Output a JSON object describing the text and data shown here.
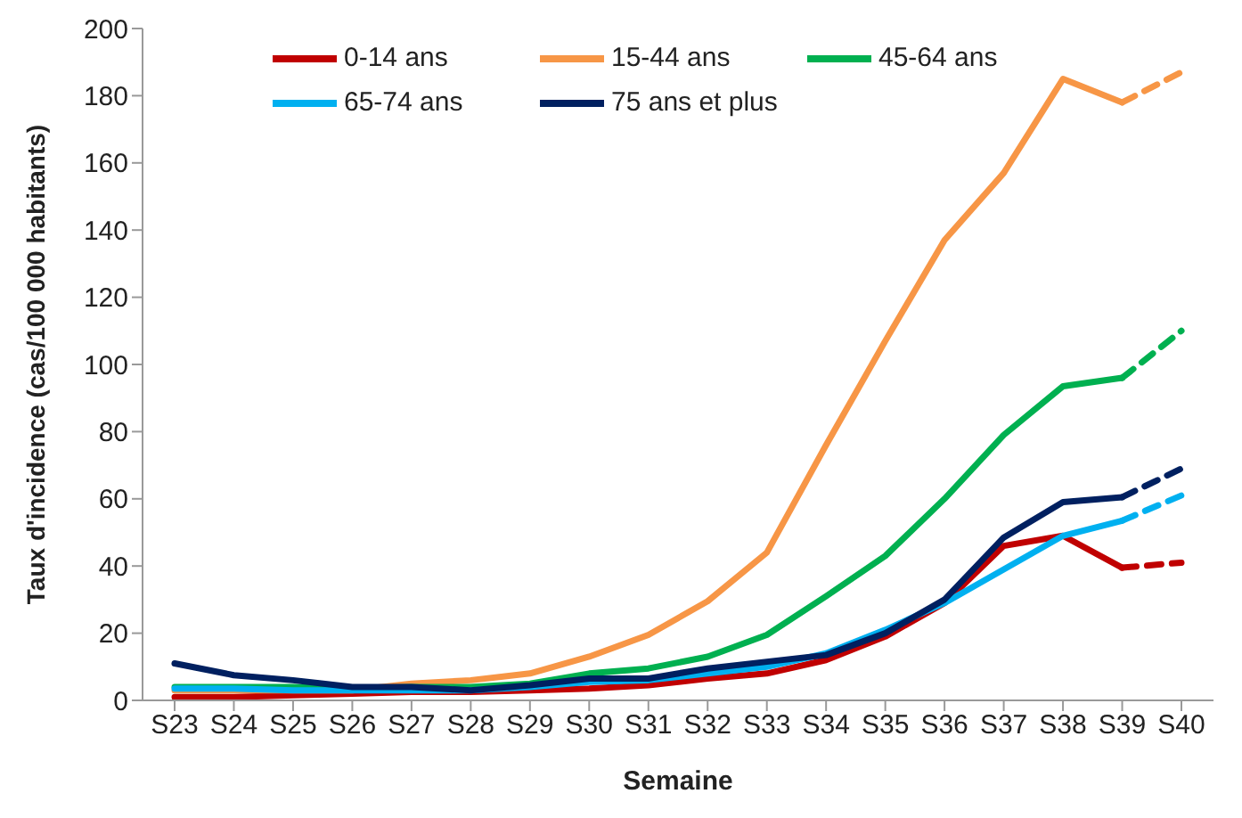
{
  "chart_data": {
    "type": "line",
    "xlabel": "Semaine",
    "ylabel": "Taux d'incidence (cas/100 000 habitants)",
    "categories": [
      "S23",
      "S24",
      "S25",
      "S26",
      "S27",
      "S28",
      "S29",
      "S30",
      "S31",
      "S32",
      "S33",
      "S34",
      "S35",
      "S36",
      "S37",
      "S38",
      "S39",
      "S40"
    ],
    "ylim": [
      0,
      200
    ],
    "yticks": [
      0,
      20,
      40,
      60,
      80,
      100,
      120,
      140,
      160,
      180,
      200
    ],
    "grid": false,
    "legend": "top",
    "marker": "none",
    "line_style": "solid",
    "series": [
      {
        "name": "0-14 ans",
        "color": "#c00000",
        "values": [
          1,
          1,
          1.5,
          2,
          2.5,
          2.5,
          3,
          3.5,
          4.5,
          6.5,
          8,
          12,
          19,
          29,
          46,
          49,
          39.5,
          null
        ]
      },
      {
        "name": "15-44 ans",
        "color": "#f79646",
        "values": [
          3,
          3,
          3,
          3,
          5,
          6,
          8,
          13,
          19.5,
          29.5,
          44,
          76,
          107,
          137,
          157,
          185,
          178,
          null
        ]
      },
      {
        "name": "45-64 ans",
        "color": "#00b050",
        "values": [
          4,
          4,
          4,
          3.5,
          4,
          4,
          5,
          8,
          9.5,
          13,
          19.5,
          31,
          43,
          60,
          79,
          93.5,
          96,
          null
        ]
      },
      {
        "name": "65-74 ans",
        "color": "#00b0f0",
        "values": [
          3.5,
          3.5,
          3,
          3,
          3,
          3,
          4,
          5.5,
          6,
          8,
          10,
          14,
          21,
          29,
          39,
          49,
          53.5,
          null
        ]
      },
      {
        "name": "75 ans et plus",
        "color": "#002060",
        "values": [
          11,
          7.5,
          6,
          4,
          4,
          3,
          4.5,
          6.5,
          6.5,
          9.5,
          11.5,
          13.5,
          20,
          30,
          48.5,
          59,
          60.5,
          null
        ]
      },
      {
        "color": "#c00000",
        "line_style": "dashed",
        "values": [
          null,
          null,
          null,
          null,
          null,
          null,
          null,
          null,
          null,
          null,
          null,
          null,
          null,
          null,
          null,
          null,
          39.5,
          41
        ]
      },
      {
        "color": "#f79646",
        "line_style": "dashed",
        "values": [
          null,
          null,
          null,
          null,
          null,
          null,
          null,
          null,
          null,
          null,
          null,
          null,
          null,
          null,
          null,
          null,
          178,
          187
        ]
      },
      {
        "color": "#00b050",
        "line_style": "dashed",
        "values": [
          null,
          null,
          null,
          null,
          null,
          null,
          null,
          null,
          null,
          null,
          null,
          null,
          null,
          null,
          null,
          null,
          96,
          110
        ]
      },
      {
        "color": "#00b0f0",
        "line_style": "dashed",
        "values": [
          null,
          null,
          null,
          null,
          null,
          null,
          null,
          null,
          null,
          null,
          null,
          null,
          null,
          null,
          null,
          null,
          53.5,
          61
        ]
      },
      {
        "color": "#002060",
        "line_style": "dashed",
        "values": [
          null,
          null,
          null,
          null,
          null,
          null,
          null,
          null,
          null,
          null,
          null,
          null,
          null,
          null,
          null,
          null,
          60.5,
          69
        ]
      }
    ]
  }
}
